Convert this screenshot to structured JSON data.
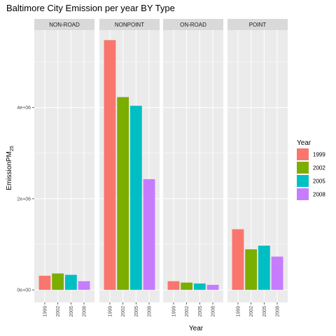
{
  "chart_data": {
    "type": "bar",
    "title": "Baltimore City Emission per year BY Type",
    "xlabel": "Year",
    "ylabel_main": "EmissionPM",
    "ylabel_sub": "25",
    "categories": [
      "1999",
      "2002",
      "2005",
      "2008"
    ],
    "facets": [
      {
        "name": "NON-ROAD",
        "values": [
          310000,
          360000,
          330000,
          190000
        ]
      },
      {
        "name": "NONPOINT",
        "values": [
          5480000,
          4230000,
          4040000,
          2430000
        ]
      },
      {
        "name": "ON-ROAD",
        "values": [
          190000,
          160000,
          140000,
          110000
        ]
      },
      {
        "name": "POINT",
        "values": [
          1330000,
          890000,
          970000,
          730000
        ]
      }
    ],
    "yticks": [
      {
        "value": 0,
        "label": "0e+00"
      },
      {
        "value": 2000000,
        "label": "2e+06"
      },
      {
        "value": 4000000,
        "label": "4e+06"
      }
    ],
    "ylim": [
      -275000,
      5700000
    ],
    "grid": true,
    "legend": {
      "title": "Year",
      "placement": "right",
      "entries": [
        "1999",
        "2002",
        "2005",
        "2008"
      ]
    },
    "colors": [
      "#F8766D",
      "#7CAE00",
      "#00BFC4",
      "#C77CFF"
    ],
    "panel_background": "#EBEBEB",
    "strip_background": "#D9D9D9"
  }
}
